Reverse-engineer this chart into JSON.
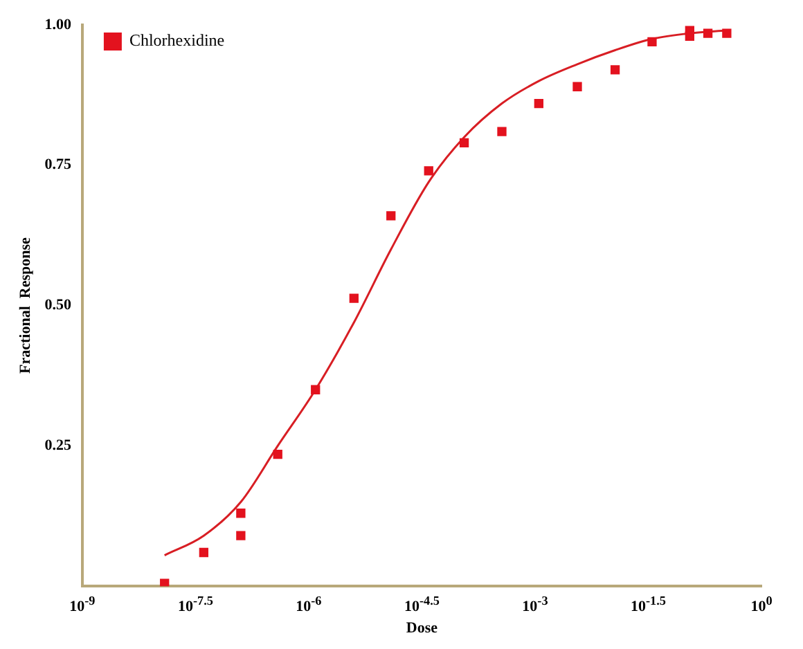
{
  "chart_data": {
    "type": "scatter",
    "xlabel": "Dose",
    "ylabel": "Fractional  Response",
    "log": "x",
    "legend": "top left",
    "grid": false,
    "marker": "square",
    "xlim": [
      1e-09,
      1
    ],
    "xticks": [
      {
        "value": 1e-09,
        "label": "10$^{-9}$"
      },
      {
        "value": 3.162e-08,
        "label": "10$^{-7.5}$"
      },
      {
        "value": 1e-06,
        "label": "10$^{-6}$"
      },
      {
        "value": 3.162e-05,
        "label": "10$^{-4.5}$"
      },
      {
        "value": 0.001,
        "label": "10$^{-3}$"
      },
      {
        "value": 0.03162,
        "label": "10$^{-1.5}$"
      },
      {
        "value": 1,
        "label": "10$^{0}$"
      }
    ],
    "ylim": [
      0,
      1
    ],
    "yticks": [
      {
        "value": 0,
        "label": null
      },
      {
        "value": 0.25,
        "label": "0.25"
      },
      {
        "value": 0.5,
        "label": "0.50"
      },
      {
        "value": 0.75,
        "label": "0.75"
      },
      {
        "value": 1,
        "label": "1.00"
      }
    ],
    "series": [
      {
        "name": "Chlorhexidine",
        "type": "scatter",
        "color": "#e3121e",
        "x": [
          1.23e-08,
          4.07e-08,
          1.26e-07,
          1.26e-07,
          3.89e-07,
          1.23e-06,
          3.98e-06,
          1.23e-05,
          3.89e-05,
          0.000115,
          0.000363,
          0.00112,
          0.00363,
          0.0115,
          0.0355,
          0.112,
          0.112,
          0.195,
          0.347
        ],
        "values": [
          0.005,
          0.06,
          0.13,
          0.09,
          0.235,
          0.35,
          0.513,
          0.66,
          0.74,
          0.79,
          0.81,
          0.86,
          0.89,
          0.92,
          0.97,
          0.99,
          0.98,
          0.985,
          0.985
        ]
      },
      {
        "type": "line",
        "color": "#d81e24",
        "marker": "none",
        "line_style": "solid",
        "x": [
          1.23e-08,
          4.07e-08,
          1.26e-07,
          3.89e-07,
          1.23e-06,
          3.98e-06,
          1.23e-05,
          3.89e-05,
          0.000115,
          0.000363,
          0.00112,
          0.00363,
          0.0115,
          0.0355,
          0.112,
          0.347
        ],
        "values": [
          0.055,
          0.09,
          0.15,
          0.25,
          0.35,
          0.47,
          0.6,
          0.72,
          0.8,
          0.86,
          0.9,
          0.93,
          0.955,
          0.975,
          0.985,
          0.99
        ]
      }
    ]
  }
}
